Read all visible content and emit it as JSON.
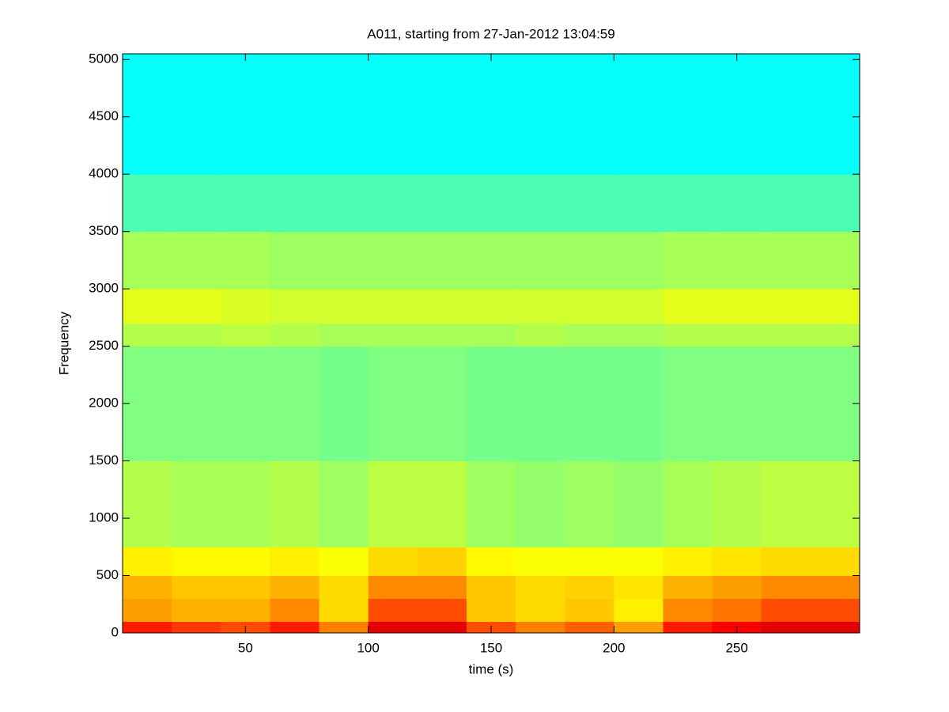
{
  "chart_data": {
    "type": "heatmap",
    "title": "A011, starting from 27-Jan-2012 13:04:59",
    "x_label": "time (s)",
    "y_label": "Frequency",
    "xlim": [
      0,
      300
    ],
    "ylim": [
      0,
      5050
    ],
    "xticks": [
      50,
      100,
      150,
      200,
      250
    ],
    "yticks": [
      0,
      500,
      1000,
      1500,
      2000,
      2500,
      3000,
      3500,
      4000,
      4500,
      5000
    ],
    "colormap": "jet",
    "clim": [
      0,
      1
    ],
    "x_edges": [
      0,
      20,
      40,
      60,
      80,
      100,
      120,
      140,
      160,
      180,
      200,
      220,
      240,
      260,
      280,
      300
    ],
    "y_edges": [
      0,
      100,
      300,
      500,
      750,
      1500,
      2500,
      2700,
      3000,
      3500,
      4000,
      5050
    ],
    "z": [
      [
        0.85,
        0.82,
        0.8,
        0.85,
        0.75,
        0.9,
        0.9,
        0.8,
        0.75,
        0.78,
        0.72,
        0.85,
        0.88,
        0.9,
        0.9
      ],
      [
        0.72,
        0.7,
        0.7,
        0.74,
        0.66,
        0.8,
        0.8,
        0.68,
        0.66,
        0.68,
        0.64,
        0.74,
        0.76,
        0.8,
        0.8
      ],
      [
        0.7,
        0.68,
        0.68,
        0.7,
        0.66,
        0.74,
        0.74,
        0.68,
        0.66,
        0.67,
        0.65,
        0.7,
        0.72,
        0.74,
        0.74
      ],
      [
        0.64,
        0.63,
        0.63,
        0.64,
        0.62,
        0.66,
        0.67,
        0.63,
        0.62,
        0.62,
        0.62,
        0.64,
        0.65,
        0.66,
        0.66
      ],
      [
        0.55,
        0.54,
        0.54,
        0.55,
        0.53,
        0.56,
        0.56,
        0.53,
        0.52,
        0.53,
        0.52,
        0.54,
        0.55,
        0.56,
        0.56
      ],
      [
        0.5,
        0.5,
        0.5,
        0.5,
        0.49,
        0.5,
        0.5,
        0.49,
        0.49,
        0.49,
        0.49,
        0.5,
        0.5,
        0.5,
        0.5
      ],
      [
        0.55,
        0.55,
        0.56,
        0.55,
        0.54,
        0.54,
        0.54,
        0.54,
        0.55,
        0.54,
        0.54,
        0.55,
        0.55,
        0.55,
        0.55
      ],
      [
        0.6,
        0.6,
        0.59,
        0.58,
        0.58,
        0.58,
        0.58,
        0.58,
        0.58,
        0.58,
        0.58,
        0.6,
        0.6,
        0.6,
        0.6
      ],
      [
        0.54,
        0.54,
        0.54,
        0.53,
        0.53,
        0.53,
        0.53,
        0.53,
        0.53,
        0.53,
        0.53,
        0.54,
        0.54,
        0.54,
        0.54
      ],
      [
        0.45,
        0.45,
        0.45,
        0.45,
        0.45,
        0.45,
        0.45,
        0.45,
        0.45,
        0.45,
        0.45,
        0.45,
        0.45,
        0.45,
        0.45
      ],
      [
        0.38,
        0.38,
        0.38,
        0.38,
        0.38,
        0.38,
        0.38,
        0.38,
        0.38,
        0.38,
        0.38,
        0.38,
        0.38,
        0.38,
        0.38
      ]
    ]
  }
}
